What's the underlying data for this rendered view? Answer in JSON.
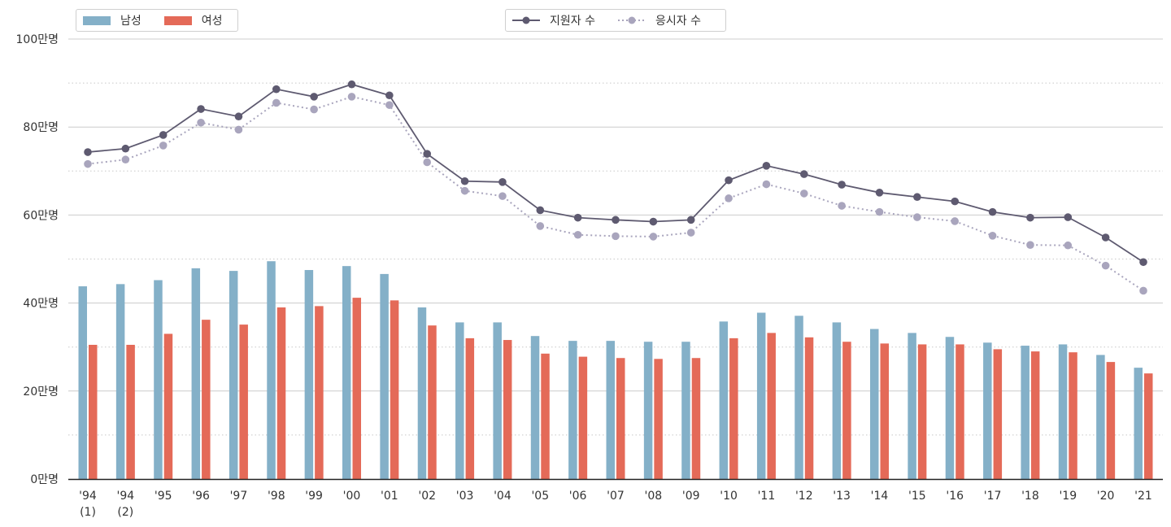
{
  "legend_bars": [
    {
      "name": "남성",
      "color": "#84b0c8"
    },
    {
      "name": "여성",
      "color": "#e46a58"
    }
  ],
  "legend_lines": [
    {
      "name": "지원자 수",
      "color": "#5e5a70",
      "style": "solid"
    },
    {
      "name": "응시자 수",
      "color": "#a9a5bd",
      "style": "dotted"
    }
  ],
  "chart_data": {
    "type": "bar+line",
    "title": "",
    "xlabel": "",
    "ylabel": "",
    "ylim": [
      0,
      100
    ],
    "y_ticks": [
      {
        "value": 0,
        "label": "0만명"
      },
      {
        "value": 20,
        "label": "20만명"
      },
      {
        "value": 40,
        "label": "40만명"
      },
      {
        "value": 60,
        "label": "60만명"
      },
      {
        "value": 80,
        "label": "80만명"
      },
      {
        "value": 100,
        "label": "100만명"
      }
    ],
    "grid": "horizontal",
    "legend_placement": "top",
    "categories": [
      [
        "'94",
        "(1)"
      ],
      [
        "'94",
        "(2)"
      ],
      [
        "'95"
      ],
      [
        "'96"
      ],
      [
        "'97"
      ],
      [
        "'98"
      ],
      [
        "'99"
      ],
      [
        "'00"
      ],
      [
        "'01"
      ],
      [
        "'02"
      ],
      [
        "'03"
      ],
      [
        "'04"
      ],
      [
        "'05"
      ],
      [
        "'06"
      ],
      [
        "'07"
      ],
      [
        "'08"
      ],
      [
        "'09"
      ],
      [
        "'10"
      ],
      [
        "'11"
      ],
      [
        "'12"
      ],
      [
        "'13"
      ],
      [
        "'14"
      ],
      [
        "'15"
      ],
      [
        "'16"
      ],
      [
        "'17"
      ],
      [
        "'18"
      ],
      [
        "'19"
      ],
      [
        "'20"
      ],
      [
        "'21"
      ]
    ],
    "bar_series": [
      {
        "name": "남성",
        "color": "#84b0c8",
        "values": [
          43.8,
          44.3,
          45.2,
          47.9,
          47.3,
          49.5,
          47.5,
          48.4,
          46.6,
          39.0,
          35.6,
          35.6,
          32.5,
          31.4,
          31.4,
          31.2,
          31.2,
          35.8,
          37.8,
          37.1,
          35.6,
          34.1,
          33.2,
          32.3,
          31.0,
          30.3,
          30.6,
          28.2,
          25.3
        ]
      },
      {
        "name": "여성",
        "color": "#e46a58",
        "values": [
          30.5,
          30.5,
          33.0,
          36.2,
          35.1,
          39.0,
          39.3,
          41.2,
          40.6,
          34.9,
          32.0,
          31.6,
          28.5,
          27.8,
          27.5,
          27.3,
          27.5,
          32.0,
          33.2,
          32.2,
          31.2,
          30.8,
          30.6,
          30.6,
          29.5,
          29.0,
          28.8,
          26.6,
          24.0
        ]
      }
    ],
    "line_series": [
      {
        "name": "지원자 수",
        "color": "#5e5a70",
        "style": "solid",
        "values": [
          74.3,
          75.1,
          78.2,
          84.1,
          82.4,
          88.6,
          86.9,
          89.7,
          87.2,
          73.9,
          67.7,
          67.5,
          61.1,
          59.4,
          58.9,
          58.5,
          58.9,
          67.9,
          71.2,
          69.3,
          66.9,
          65.1,
          64.1,
          63.1,
          60.7,
          59.4,
          59.5,
          54.9,
          49.3
        ]
      },
      {
        "name": "응시자 수",
        "color": "#a9a5bd",
        "style": "dotted",
        "values": [
          71.6,
          72.6,
          75.8,
          81.0,
          79.4,
          85.5,
          84.0,
          86.9,
          85.0,
          72.0,
          65.5,
          64.3,
          57.5,
          55.5,
          55.2,
          55.1,
          56.0,
          63.8,
          67.0,
          64.9,
          62.1,
          60.7,
          59.5,
          58.6,
          55.3,
          53.2,
          53.1,
          48.5,
          42.8
        ]
      }
    ]
  }
}
